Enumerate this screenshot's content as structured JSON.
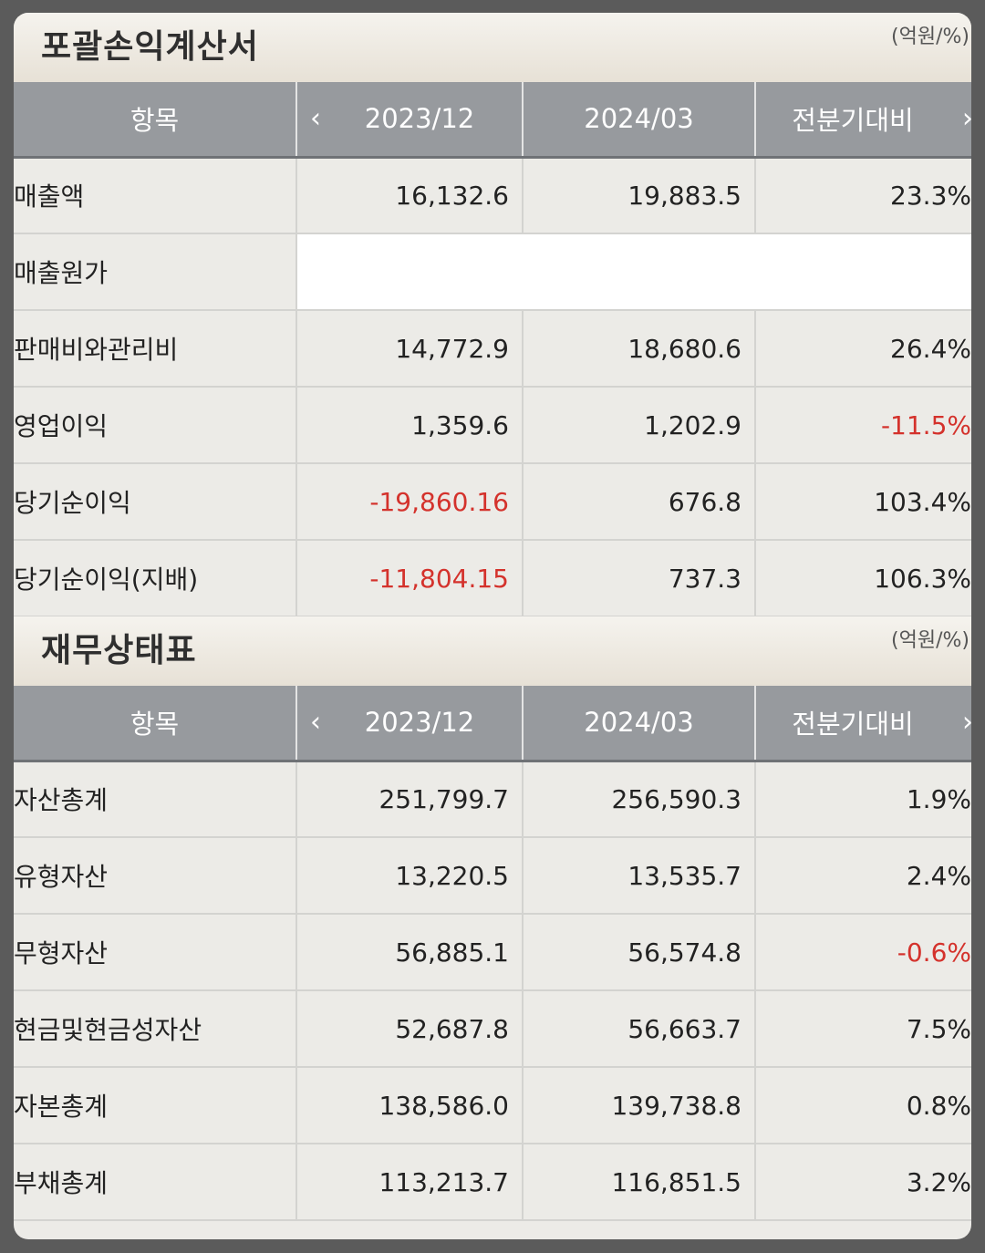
{
  "income_statement": {
    "title": "포괄손익계산서",
    "unit": "(억원/%)",
    "headers": {
      "item": "항목",
      "col1": "2023/12",
      "col2": "2024/03",
      "col3": "전분기대비"
    },
    "rows": [
      {
        "label": "매출액",
        "v1": "16,132.6",
        "v2": "19,883.5",
        "v3": "23.3%"
      },
      {
        "label": "매출원가",
        "v1": "",
        "v2": "",
        "v3": ""
      },
      {
        "label": "판매비와관리비",
        "v1": "14,772.9",
        "v2": "18,680.6",
        "v3": "26.4%"
      },
      {
        "label": "영업이익",
        "v1": "1,359.6",
        "v2": "1,202.9",
        "v3": "-11.5%"
      },
      {
        "label": "당기순이익",
        "v1": "-19,860.16",
        "v2": "676.8",
        "v3": "103.4%"
      },
      {
        "label": "당기순이익(지배)",
        "v1": "-11,804.15",
        "v2": "737.3",
        "v3": "106.3%"
      }
    ]
  },
  "balance_sheet": {
    "title": "재무상태표",
    "unit": "(억원/%)",
    "headers": {
      "item": "항목",
      "col1": "2023/12",
      "col2": "2024/03",
      "col3": "전분기대비"
    },
    "rows": [
      {
        "label": "자산총계",
        "v1": "251,799.7",
        "v2": "256,590.3",
        "v3": "1.9%"
      },
      {
        "label": "유형자산",
        "v1": "13,220.5",
        "v2": "13,535.7",
        "v3": "2.4%"
      },
      {
        "label": "무형자산",
        "v1": "56,885.1",
        "v2": "56,574.8",
        "v3": "-0.6%"
      },
      {
        "label": "현금및현금성자산",
        "v1": "52,687.8",
        "v2": "56,663.7",
        "v3": "7.5%"
      },
      {
        "label": "자본총계",
        "v1": "138,586.0",
        "v2": "139,738.8",
        "v3": "0.8%"
      },
      {
        "label": "부채총계",
        "v1": "113,213.7",
        "v2": "116,851.5",
        "v3": "3.2%"
      }
    ]
  },
  "icons": {
    "prev": "chevron-left-icon",
    "next": "chevron-right-icon"
  },
  "colors": {
    "negative": "#d4322c",
    "header_bg": "#979a9e"
  }
}
